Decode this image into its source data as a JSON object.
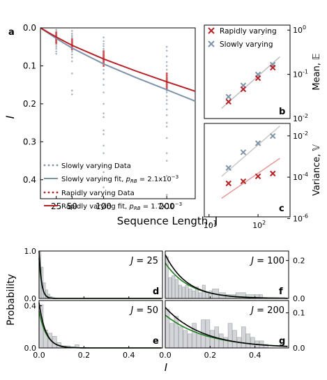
{
  "chart_data": [
    {
      "panel": "a",
      "type": "scatter",
      "xlabel": "Sequence Length, J",
      "ylabel": "I",
      "x_ticks": [
        25,
        50,
        100,
        200
      ],
      "x_tick_labels": [
        "25",
        "50",
        "100",
        "200"
      ],
      "y_ticks": [
        0.0,
        0.1,
        0.2,
        0.3,
        0.4
      ],
      "y_tick_labels": [
        "0.0",
        "0.1",
        "0.2",
        "0.3",
        "0.4"
      ],
      "xlim": [
        0,
        245
      ],
      "ylim": [
        0.45,
        0.0
      ],
      "colors": {
        "slow": "#7f93a8",
        "slow_points": "#a9b5c2",
        "rapid": "#b82025",
        "rapid_points": "#cf5558"
      },
      "legend": [
        {
          "label": "Slowly varying Data",
          "style": "dots",
          "series": "slow_data"
        },
        {
          "label": "Slowly varying fit, ",
          "math_p": "p",
          "math_sub": "RB",
          "value": " = 2.1x10",
          "exp": "−3",
          "style": "line",
          "series": "slow_fit"
        },
        {
          "label": "Rapidly varying Data",
          "style": "dots",
          "series": "rapid_data"
        },
        {
          "label": "Rapidly varying fit, ",
          "math_p": "p",
          "math_sub": "RB",
          "value": " = 1.7x10",
          "exp": "−3",
          "style": "line",
          "series": "rapid_fit"
        }
      ],
      "slow_data": {
        "x": [
          25,
          50,
          100,
          200
        ],
        "values": [
          [
            0.005,
            0.01,
            0.013,
            0.016,
            0.019,
            0.021,
            0.023,
            0.025,
            0.027,
            0.029,
            0.031,
            0.033,
            0.035,
            0.038,
            0.041,
            0.045,
            0.05,
            0.055,
            0.062,
            0.068
          ],
          [
            0.008,
            0.015,
            0.02,
            0.024,
            0.028,
            0.031,
            0.034,
            0.037,
            0.04,
            0.043,
            0.046,
            0.05,
            0.054,
            0.058,
            0.063,
            0.07,
            0.078,
            0.088,
            0.12,
            0.165,
            0.175
          ],
          [
            0.025,
            0.035,
            0.042,
            0.048,
            0.055,
            0.06,
            0.065,
            0.07,
            0.075,
            0.08,
            0.085,
            0.09,
            0.095,
            0.1,
            0.11,
            0.12,
            0.135,
            0.15,
            0.17,
            0.2,
            0.225,
            0.235,
            0.27,
            0.28,
            0.31,
            0.33,
            0.38,
            0.42
          ],
          [
            0.05,
            0.06,
            0.075,
            0.09,
            0.1,
            0.11,
            0.12,
            0.125,
            0.13,
            0.135,
            0.14,
            0.145,
            0.15,
            0.155,
            0.16,
            0.165,
            0.17,
            0.18,
            0.19,
            0.2,
            0.215,
            0.23,
            0.25,
            0.26,
            0.29,
            0.33,
            0.35,
            0.39,
            0.44
          ]
        ]
      },
      "rapid_data": {
        "x": [
          25,
          50,
          100,
          200
        ],
        "values": [
          [
            0.012,
            0.016,
            0.019,
            0.021,
            0.023,
            0.025,
            0.027,
            0.029,
            0.031,
            0.034,
            0.037,
            0.04
          ],
          [
            0.03,
            0.033,
            0.036,
            0.038,
            0.04,
            0.042,
            0.044,
            0.046,
            0.048,
            0.05,
            0.053,
            0.056
          ],
          [
            0.062,
            0.066,
            0.07,
            0.073,
            0.076,
            0.079,
            0.082,
            0.085,
            0.088,
            0.091,
            0.095,
            0.1
          ],
          [
            0.12,
            0.125,
            0.13,
            0.134,
            0.138,
            0.141,
            0.144,
            0.147,
            0.15,
            0.154,
            0.158,
            0.162
          ]
        ]
      },
      "slow_fit": {
        "x": [
          0,
          25,
          50,
          100,
          150,
          200,
          245
        ],
        "y": [
          0.0,
          0.028,
          0.053,
          0.095,
          0.13,
          0.163,
          0.193
        ]
      },
      "rapid_fit": {
        "x": [
          0,
          25,
          50,
          100,
          150,
          200,
          245
        ],
        "y": [
          0.0,
          0.024,
          0.046,
          0.082,
          0.113,
          0.142,
          0.167
        ]
      }
    },
    {
      "panel": "b",
      "type": "scatter",
      "log_x": true,
      "log_y": true,
      "ylabel": "Mean, 𝔼",
      "y_tick_labels": [
        "10",
        "10",
        "10"
      ],
      "y_tick_exps": [
        "0",
        "-1",
        "-2"
      ],
      "legend": [
        {
          "label": "Rapidly varying",
          "marker": "x",
          "color": "#b82025"
        },
        {
          "label": "Slowly varying",
          "marker": "x",
          "color": "#7f93a8"
        }
      ],
      "x": [
        25,
        50,
        100,
        200
      ],
      "series": [
        {
          "name": "Rapidly varying",
          "values": [
            0.024,
            0.046,
            0.082,
            0.142
          ]
        },
        {
          "name": "Slowly varying",
          "values": [
            0.031,
            0.056,
            0.099,
            0.165
          ]
        }
      ],
      "fit_line": {
        "x": [
          18,
          280
        ],
        "y": [
          0.017,
          0.25
        ]
      },
      "ylim": [
        0.01,
        1.3
      ],
      "xlim": [
        8,
        450
      ]
    },
    {
      "panel": "c",
      "type": "scatter",
      "log_x": true,
      "log_y": true,
      "ylabel": "Variance, 𝕍",
      "x_tick_labels": [
        "10",
        "10"
      ],
      "x_tick_exps": [
        "1",
        "2"
      ],
      "y_tick_labels": [
        "10",
        "10",
        "10"
      ],
      "y_tick_exps": [
        "-2",
        "-4",
        "-6"
      ],
      "x": [
        25,
        50,
        100,
        200
      ],
      "series": [
        {
          "name": "Rapidly varying",
          "values": [
            5e-05,
            6.3e-05,
            0.00011,
            0.00015
          ]
        },
        {
          "name": "Slowly varying",
          "values": [
            0.00028,
            0.0016,
            0.0044,
            0.0098
          ]
        }
      ],
      "fit_slow": {
        "x": [
          18,
          280
        ],
        "y": [
          0.00011,
          0.03
        ]
      },
      "fit_rapid": {
        "x": [
          18,
          280
        ],
        "y": [
          9.5e-06,
          0.00082
        ]
      },
      "ylim": [
        1.2e-06,
        0.04
      ],
      "xlim": [
        8,
        450
      ]
    },
    {
      "panel": "d",
      "type": "bar",
      "annotation_prefix": "J",
      "annotation_value": " = 25",
      "y_tick_labels": [
        "0.0",
        "1.0"
      ],
      "ylim": [
        0,
        1.0
      ],
      "xlim": [
        0,
        0.55
      ],
      "bins": [
        0.0,
        0.01,
        0.02,
        0.03,
        0.04,
        0.05,
        0.06
      ],
      "values": [
        1.0,
        0.66,
        0.33,
        0.18,
        0.09,
        0.04,
        0.02
      ]
    },
    {
      "panel": "e",
      "type": "bar",
      "annotation_prefix": "J",
      "annotation_value": " = 50",
      "y_tick_labels": [
        "0.0",
        "0.4"
      ],
      "ylim": [
        0,
        0.45
      ],
      "xlim": [
        0,
        0.55
      ],
      "bins": [
        0.0,
        0.02,
        0.04,
        0.06,
        0.08,
        0.1,
        0.12,
        0.14,
        0.16
      ],
      "values": [
        0.41,
        0.17,
        0.14,
        0.11,
        0.05,
        0.02,
        0.02,
        0.01,
        0.03
      ]
    },
    {
      "panel": "f",
      "type": "bar",
      "annotation_prefix": "J",
      "annotation_value": " = 100",
      "y_tick_labels": [
        "0.0",
        "0.2"
      ],
      "ylim": [
        0,
        0.25
      ],
      "xlim": [
        0,
        0.55
      ],
      "bins": [
        0.0,
        0.015,
        0.03,
        0.045,
        0.06,
        0.075,
        0.09,
        0.105,
        0.12,
        0.135,
        0.15,
        0.165,
        0.18,
        0.195,
        0.21,
        0.24,
        0.27,
        0.315,
        0.36,
        0.4,
        0.42
      ],
      "values": [
        0.22,
        0.11,
        0.12,
        0.1,
        0.07,
        0.06,
        0.07,
        0.05,
        0.04,
        0.06,
        0.03,
        0.07,
        0.03,
        0.04,
        0.05,
        0.03,
        0.02,
        0.03,
        0.02,
        0.02,
        0.02
      ]
    },
    {
      "panel": "g",
      "type": "bar",
      "annotation_prefix": "J",
      "annotation_value": " = 200",
      "y_tick_labels": [
        "0.0",
        "0.1"
      ],
      "ylim": [
        0,
        0.135
      ],
      "xlim": [
        0,
        0.55
      ],
      "bins": [
        0.0,
        0.02,
        0.04,
        0.06,
        0.08,
        0.1,
        0.12,
        0.14,
        0.16,
        0.18,
        0.2,
        0.22,
        0.24,
        0.26,
        0.28,
        0.3,
        0.32,
        0.34,
        0.36,
        0.38,
        0.4,
        0.42,
        0.44
      ],
      "values": [
        0.11,
        0.07,
        0.09,
        0.06,
        0.05,
        0.04,
        0.07,
        0.04,
        0.08,
        0.08,
        0.05,
        0.06,
        0.04,
        0.03,
        0.07,
        0.05,
        0.03,
        0.06,
        0.04,
        0.03,
        0.02,
        0.02,
        0.01
      ]
    }
  ],
  "hist_common": {
    "x_ticks": [
      0.0,
      0.2,
      0.4
    ],
    "x_tick_labels": [
      "0.0",
      "0.2",
      "0.4"
    ],
    "xlabel": "I",
    "ylabel": "Probability",
    "bar_color": "#d3d5d8",
    "bar_edge": "#9ba1a7",
    "curve_colors": [
      "#1f7a1f",
      "#000000"
    ]
  }
}
